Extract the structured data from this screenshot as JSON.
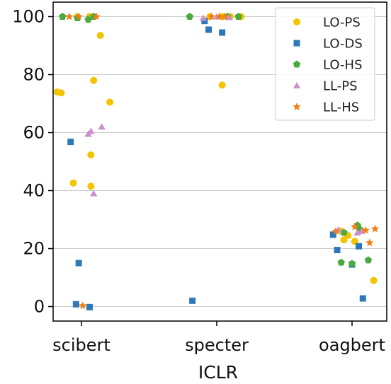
{
  "chart_data": {
    "type": "scatter",
    "title": "",
    "xlabel": "ICLR",
    "ylabel": "",
    "categories": [
      "scibert",
      "specter",
      "oagbert"
    ],
    "ylim": [
      -5,
      105
    ],
    "yticks": [
      0,
      20,
      40,
      60,
      80,
      100
    ],
    "grid": "horizontal",
    "legend_position": "top-right",
    "series": [
      {
        "name": "LO-PS",
        "marker": "circle",
        "color": "#f5c300",
        "points": [
          {
            "category": "scibert",
            "jitter": -0.03,
            "y": 100
          },
          {
            "category": "scibert",
            "jitter": 0.06,
            "y": 100
          },
          {
            "category": "scibert",
            "jitter": 0.14,
            "y": 93.5
          },
          {
            "category": "scibert",
            "jitter": 0.09,
            "y": 78
          },
          {
            "category": "scibert",
            "jitter": -0.18,
            "y": 74
          },
          {
            "category": "scibert",
            "jitter": -0.15,
            "y": 73.7
          },
          {
            "category": "scibert",
            "jitter": 0.21,
            "y": 70.5
          },
          {
            "category": "scibert",
            "jitter": 0.07,
            "y": 52.3
          },
          {
            "category": "scibert",
            "jitter": -0.06,
            "y": 42.6
          },
          {
            "category": "scibert",
            "jitter": 0.07,
            "y": 41.5
          },
          {
            "category": "specter",
            "jitter": -0.05,
            "y": 100
          },
          {
            "category": "specter",
            "jitter": 0.04,
            "y": 100
          },
          {
            "category": "specter",
            "jitter": 0.1,
            "y": 100
          },
          {
            "category": "specter",
            "jitter": 0.18,
            "y": 100
          },
          {
            "category": "specter",
            "jitter": 0.04,
            "y": 76.4
          },
          {
            "category": "oagbert",
            "jitter": -0.08,
            "y": 26
          },
          {
            "category": "oagbert",
            "jitter": -0.03,
            "y": 24.5
          },
          {
            "category": "oagbert",
            "jitter": -0.06,
            "y": 23
          },
          {
            "category": "oagbert",
            "jitter": 0.02,
            "y": 22.5
          },
          {
            "category": "oagbert",
            "jitter": 0.05,
            "y": 27
          },
          {
            "category": "oagbert",
            "jitter": 0.16,
            "y": 9
          }
        ]
      },
      {
        "name": "LO-DS",
        "marker": "square",
        "color": "#2f78b8",
        "points": [
          {
            "category": "scibert",
            "jitter": -0.08,
            "y": 56.8
          },
          {
            "category": "scibert",
            "jitter": -0.02,
            "y": 15
          },
          {
            "category": "scibert",
            "jitter": -0.04,
            "y": 0.8
          },
          {
            "category": "scibert",
            "jitter": 0.06,
            "y": -0.2
          },
          {
            "category": "specter",
            "jitter": -0.09,
            "y": 98.5
          },
          {
            "category": "specter",
            "jitter": -0.06,
            "y": 95.5
          },
          {
            "category": "specter",
            "jitter": 0.04,
            "y": 94.5
          },
          {
            "category": "specter",
            "jitter": -0.18,
            "y": 2
          },
          {
            "category": "oagbert",
            "jitter": -0.14,
            "y": 24.8
          },
          {
            "category": "oagbert",
            "jitter": -0.11,
            "y": 19.5
          },
          {
            "category": "oagbert",
            "jitter": 0.0,
            "y": 14.5
          },
          {
            "category": "oagbert",
            "jitter": 0.05,
            "y": 20.8
          },
          {
            "category": "oagbert",
            "jitter": 0.08,
            "y": 2.8
          }
        ]
      },
      {
        "name": "LO-HS",
        "marker": "pentagon",
        "color": "#4aa93f",
        "points": [
          {
            "category": "scibert",
            "jitter": -0.14,
            "y": 100
          },
          {
            "category": "scibert",
            "jitter": -0.03,
            "y": 99.5
          },
          {
            "category": "scibert",
            "jitter": 0.05,
            "y": 99
          },
          {
            "category": "scibert",
            "jitter": 0.09,
            "y": 100
          },
          {
            "category": "specter",
            "jitter": -0.2,
            "y": 100
          },
          {
            "category": "specter",
            "jitter": 0.08,
            "y": 100
          },
          {
            "category": "specter",
            "jitter": 0.16,
            "y": 100
          },
          {
            "category": "oagbert",
            "jitter": -0.08,
            "y": 15.2
          },
          {
            "category": "oagbert",
            "jitter": 0.0,
            "y": 14.8
          },
          {
            "category": "oagbert",
            "jitter": 0.04,
            "y": 28
          },
          {
            "category": "oagbert",
            "jitter": 0.06,
            "y": 26.5
          },
          {
            "category": "oagbert",
            "jitter": 0.12,
            "y": 16
          },
          {
            "category": "oagbert",
            "jitter": -0.06,
            "y": 25.5
          }
        ]
      },
      {
        "name": "LL-PS",
        "marker": "triangle",
        "color": "#cc8fcc",
        "points": [
          {
            "category": "scibert",
            "jitter": 0.05,
            "y": 59.5
          },
          {
            "category": "scibert",
            "jitter": 0.07,
            "y": 60.5
          },
          {
            "category": "scibert",
            "jitter": 0.15,
            "y": 62
          },
          {
            "category": "scibert",
            "jitter": 0.09,
            "y": 39
          },
          {
            "category": "specter",
            "jitter": -0.1,
            "y": 99.5
          },
          {
            "category": "specter",
            "jitter": 0.0,
            "y": 100
          },
          {
            "category": "specter",
            "jitter": 0.09,
            "y": 99.8
          },
          {
            "category": "oagbert",
            "jitter": -0.1,
            "y": 26.5
          },
          {
            "category": "oagbert",
            "jitter": 0.04,
            "y": 25.5
          },
          {
            "category": "oagbert",
            "jitter": 0.07,
            "y": 26
          }
        ]
      },
      {
        "name": "LL-HS",
        "marker": "star",
        "color": "#f07f14",
        "points": [
          {
            "category": "scibert",
            "jitter": -0.09,
            "y": 100
          },
          {
            "category": "scibert",
            "jitter": -0.02,
            "y": 100
          },
          {
            "category": "scibert",
            "jitter": 0.11,
            "y": 100
          },
          {
            "category": "scibert",
            "jitter": 0.01,
            "y": 0.3
          },
          {
            "category": "specter",
            "jitter": -0.04,
            "y": 100
          },
          {
            "category": "specter",
            "jitter": 0.02,
            "y": 100
          },
          {
            "category": "specter",
            "jitter": 0.06,
            "y": 100
          },
          {
            "category": "oagbert",
            "jitter": -0.12,
            "y": 26
          },
          {
            "category": "oagbert",
            "jitter": 0.02,
            "y": 27.5
          },
          {
            "category": "oagbert",
            "jitter": 0.1,
            "y": 26.3
          },
          {
            "category": "oagbert",
            "jitter": 0.17,
            "y": 26.8
          },
          {
            "category": "oagbert",
            "jitter": 0.13,
            "y": 22
          }
        ]
      }
    ]
  }
}
